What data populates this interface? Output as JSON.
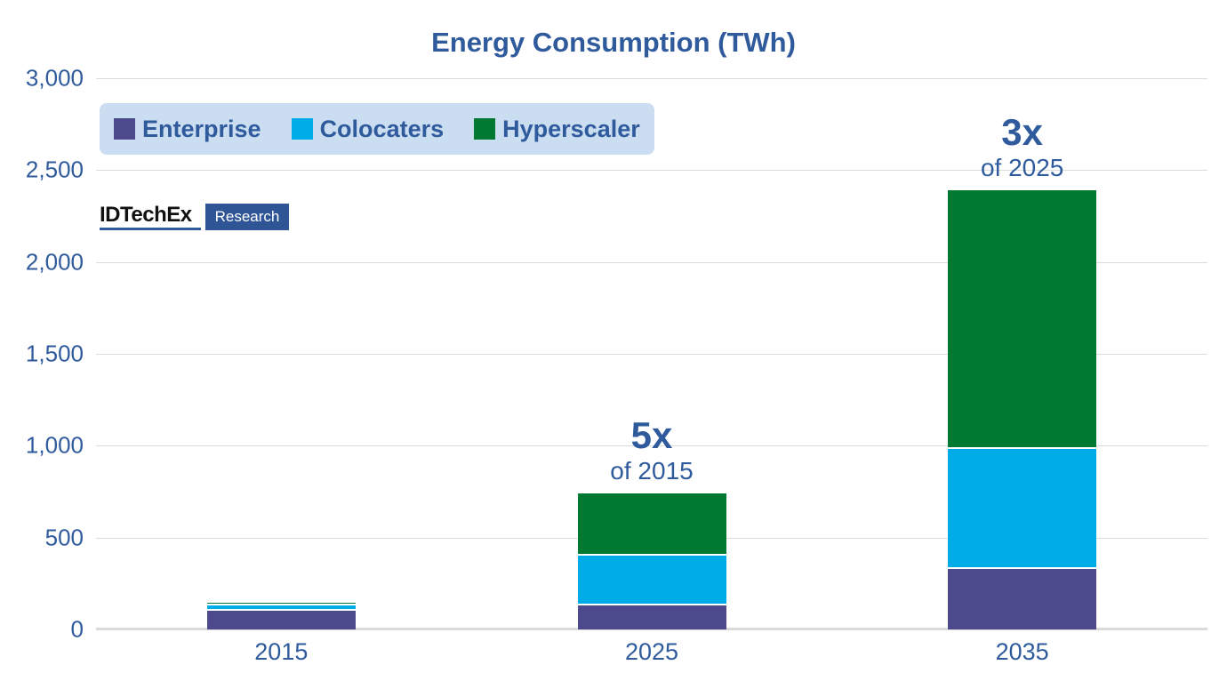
{
  "colors": {
    "accent_blue": "#2F5B9D",
    "legend_bg": "#CADDF1",
    "gridline": "#DBDBDB",
    "badge_bg": "#2F5596",
    "separator": "#ffffff"
  },
  "logo": {
    "brand": "IDTechEx",
    "badge": "Research"
  },
  "chart_data": {
    "type": "bar",
    "stacked": true,
    "title": "Energy Consumption (TWh)",
    "categories": [
      "2015",
      "2025",
      "2035"
    ],
    "series": [
      {
        "name": "Enterprise",
        "color": "#4C4A8C",
        "values": [
          100,
          130,
          330
        ]
      },
      {
        "name": "Colocaters",
        "color": "#00ACE8",
        "values": [
          30,
          270,
          650
        ]
      },
      {
        "name": "Hyperscaler",
        "color": "#007A33",
        "values": [
          15,
          340,
          1410
        ]
      }
    ],
    "totals": [
      145,
      740,
      2390
    ],
    "ylim": [
      0,
      3000
    ],
    "yticks": [
      {
        "value": 0,
        "label": "0"
      },
      {
        "value": 500,
        "label": "500"
      },
      {
        "value": 1000,
        "label": "1,000"
      },
      {
        "value": 1500,
        "label": "1,500"
      },
      {
        "value": 2000,
        "label": "2,000"
      },
      {
        "value": 2500,
        "label": "2,500"
      },
      {
        "value": 3000,
        "label": "3,000"
      }
    ],
    "grid": true,
    "legend_position": "top-left",
    "annotations": [
      {
        "category": "2025",
        "text": "5x",
        "subtext": "of 2015"
      },
      {
        "category": "2035",
        "text": "3x",
        "subtext": "of 2025"
      }
    ]
  }
}
